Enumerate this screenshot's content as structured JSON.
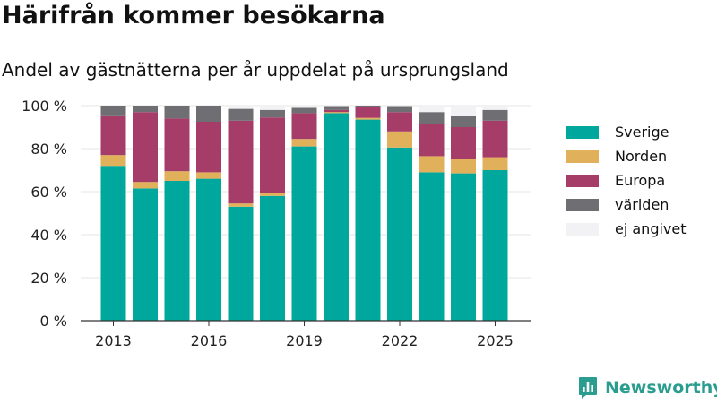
{
  "title": "Härifrån kommer besökarna",
  "subtitle": "Andel av gästnätterna per år uppdelat på ursprungsland",
  "brand": "Newsworthy",
  "chart_data": {
    "type": "bar",
    "stacked": true,
    "x": [
      2013,
      2014,
      2015,
      2016,
      2017,
      2018,
      2019,
      2020,
      2021,
      2022,
      2023,
      2024,
      2025
    ],
    "x_ticks": [
      2013,
      2016,
      2019,
      2022,
      2025
    ],
    "y_ticks": [
      0,
      20,
      40,
      60,
      80,
      100
    ],
    "y_tick_labels": [
      "0 %",
      "20 %",
      "40 %",
      "60 %",
      "80 %",
      "100 %"
    ],
    "ylim": [
      0,
      100
    ],
    "grid": "horizontal",
    "legend_position": "right",
    "series": [
      {
        "name": "Sverige",
        "color": "#00a79d",
        "values": [
          72,
          61.5,
          65,
          66,
          53,
          58,
          81,
          96.5,
          93.5,
          80.5,
          69,
          68.5,
          70
        ]
      },
      {
        "name": "Norden",
        "color": "#e0b05a",
        "values": [
          5,
          3,
          4.5,
          3,
          1.5,
          1.5,
          3.5,
          0.5,
          0.8,
          7.5,
          7.5,
          6.5,
          6
        ]
      },
      {
        "name": "Europa",
        "color": "#a63d68",
        "values": [
          18.5,
          32.5,
          24.5,
          23.5,
          38.5,
          35,
          12,
          1,
          5.2,
          9,
          15,
          15,
          17
        ]
      },
      {
        "name": "världen",
        "color": "#6e6e73",
        "values": [
          4.5,
          3,
          6,
          7.5,
          5.5,
          3.5,
          2.5,
          1.8,
          0.5,
          2.8,
          5.5,
          5,
          5
        ]
      },
      {
        "name": "ej angivet",
        "color": "#f2f2f4",
        "values": [
          0,
          0,
          0,
          0,
          1.5,
          2,
          1,
          0.2,
          0,
          0.2,
          3,
          5,
          2
        ]
      }
    ]
  }
}
